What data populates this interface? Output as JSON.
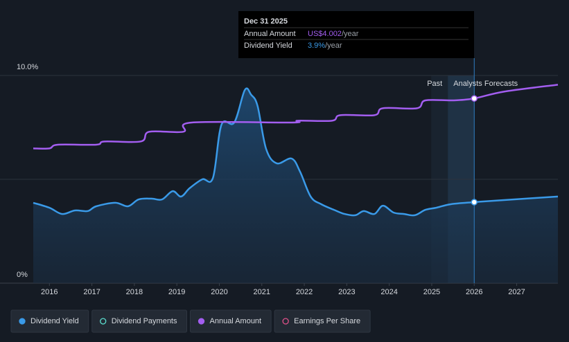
{
  "chart_data": {
    "type": "line",
    "tooltip": {
      "date": "Dec 31 2025",
      "rows": [
        {
          "label": "Annual Amount",
          "value": "US$4.002",
          "unit": "/year",
          "color": "#a35ef0"
        },
        {
          "label": "Dividend Yield",
          "value": "3.9%",
          "unit": "/year",
          "color": "#3a9ae8"
        }
      ]
    },
    "past_label": "Past",
    "forecast_label": "Analysts Forecasts",
    "forecast_start": 2026.0,
    "xlim": [
      2015.62,
      2027.97
    ],
    "xticks": [
      2016,
      2017,
      2018,
      2019,
      2020,
      2021,
      2022,
      2023,
      2024,
      2025,
      2026,
      2027
    ],
    "ylim": [
      0,
      10
    ],
    "yticks": [
      {
        "value": 0,
        "label": "0%"
      },
      {
        "value": 10,
        "label": "10.0%"
      }
    ],
    "y2lim": [
      0,
      4.5
    ],
    "grid": true,
    "series": [
      {
        "name": "Dividend Yield",
        "color": "#3a9ae8",
        "area": true,
        "x": [
          2015.62,
          2016.0,
          2016.3,
          2016.6,
          2016.9,
          2017.1,
          2017.55,
          2017.85,
          2018.1,
          2018.4,
          2018.65,
          2018.9,
          2019.1,
          2019.3,
          2019.6,
          2019.85,
          2020.05,
          2020.35,
          2020.6,
          2020.75,
          2020.9,
          2021.1,
          2021.35,
          2021.7,
          2021.9,
          2022.15,
          2022.4,
          2022.7,
          2022.95,
          2023.2,
          2023.4,
          2023.65,
          2023.85,
          2024.1,
          2024.35,
          2024.6,
          2024.85,
          2025.1,
          2025.45,
          2026.0,
          2026.7,
          2027.97
        ],
        "values": [
          3.87,
          3.63,
          3.33,
          3.5,
          3.47,
          3.7,
          3.87,
          3.7,
          4.03,
          4.07,
          4.03,
          4.43,
          4.17,
          4.57,
          5.0,
          5.07,
          7.63,
          7.73,
          9.3,
          9.07,
          8.53,
          6.47,
          5.77,
          6.0,
          5.37,
          4.17,
          3.8,
          3.53,
          3.33,
          3.27,
          3.47,
          3.33,
          3.73,
          3.4,
          3.33,
          3.27,
          3.53,
          3.63,
          3.8,
          3.9,
          4.0,
          4.17
        ],
        "highlight": 39
      },
      {
        "name": "Annual Amount",
        "color": "#a35ef0",
        "axis": "y2",
        "x": [
          2015.62,
          2016.0,
          2016.2,
          2017.1,
          2017.3,
          2018.15,
          2018.35,
          2019.15,
          2019.35,
          2021.7,
          2021.85,
          2022.65,
          2022.85,
          2023.65,
          2023.85,
          2024.65,
          2024.85,
          2025.5,
          2026.0,
          2026.7,
          2027.97
        ],
        "values": [
          2.92,
          2.92,
          3.0,
          3.0,
          3.07,
          3.07,
          3.28,
          3.28,
          3.48,
          3.48,
          3.52,
          3.52,
          3.64,
          3.64,
          3.79,
          3.79,
          3.96,
          3.96,
          4.002,
          4.15,
          4.3
        ],
        "highlight": 18
      }
    ],
    "legend": [
      {
        "series": 0
      },
      {
        "name": "Dividend Payments",
        "color": "#5ce0d0"
      },
      {
        "series": 1
      },
      {
        "name": "Earnings Per Share",
        "color": "#e0508a"
      }
    ]
  }
}
